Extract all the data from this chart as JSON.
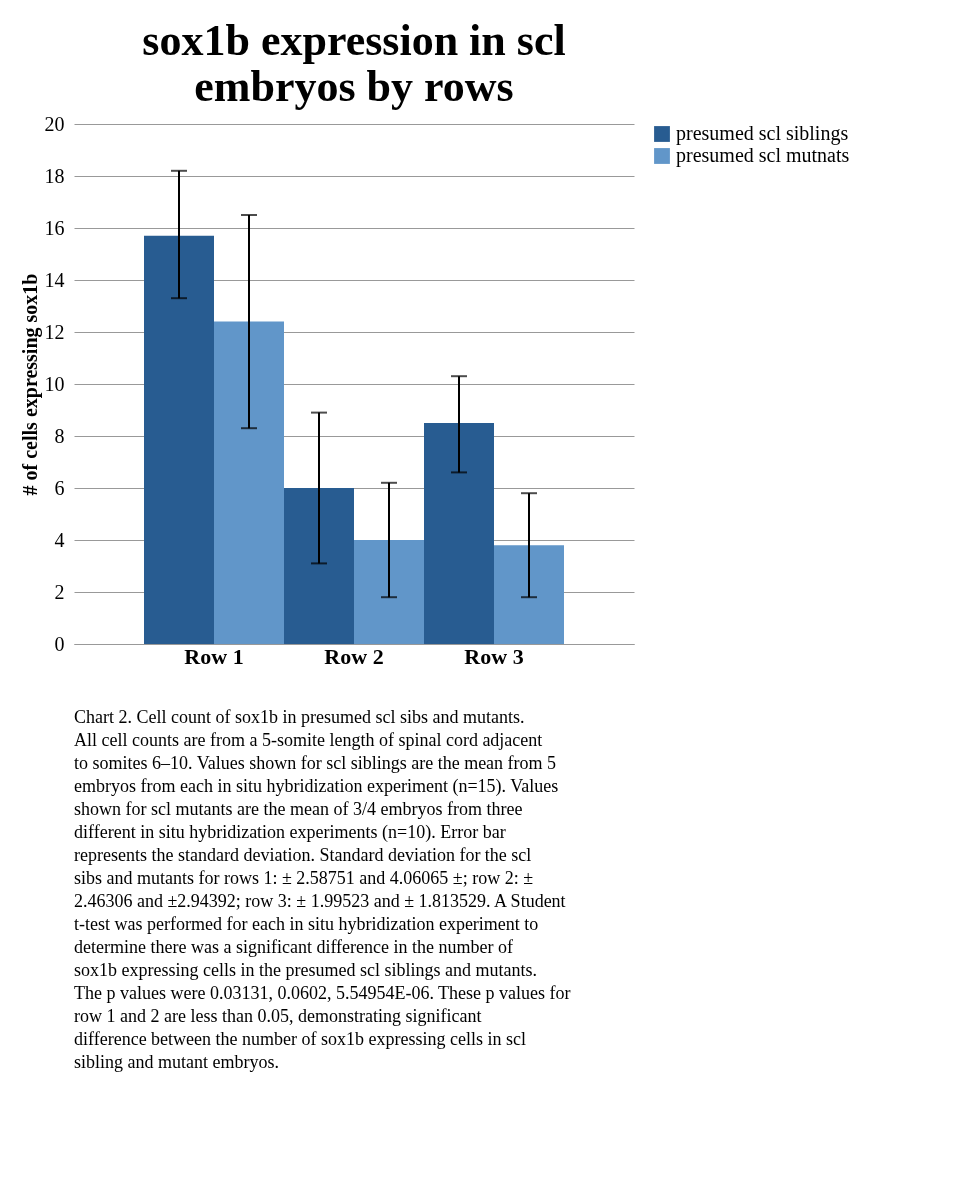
{
  "chart_data": {
    "type": "bar",
    "title": "sox1b expression in scl embryos by rows",
    "ylabel": "# of cells expressing sox1b",
    "categories": [
      "Row 1",
      "Row 2",
      "Row 3"
    ],
    "series": [
      {
        "name": "presumed scl siblings",
        "color": "#285c91",
        "values": [
          15.7,
          6.0,
          8.5
        ],
        "errors": [
          [
            13.3,
            18.2
          ],
          [
            3.1,
            8.9
          ],
          [
            6.6,
            10.3
          ]
        ]
      },
      {
        "name": "presumed scl mutnats",
        "color": "#6196c9",
        "values": [
          12.4,
          4.0,
          3.8
        ],
        "errors": [
          [
            8.3,
            16.5
          ],
          [
            1.8,
            6.2
          ],
          [
            1.8,
            5.8
          ]
        ]
      }
    ],
    "ylim": [
      0,
      20
    ],
    "yticks": [
      0,
      2,
      4,
      6,
      8,
      10,
      12,
      14,
      16,
      18,
      20
    ],
    "grid": "y",
    "legend": "right",
    "annotations": [
      "Chart 2. Cell count of sox1b in presumed scl sibs and mutants.  All cell counts are from a 5-somite length of spinal cord adjacent to somites 6–10. Values shown for scl siblings are the mean from 5 embryos from each in situ hybridization experiment (n=15). Values shown for scl mutants are the mean of 3/4 embryos from three different in situ hybridization experiments (n=10). Error bar represents the standard deviation. Standard deviation for the scl sibs and mutants for rows 1: ± 2.58751 and 4.06065 ±; row 2: ± 2.46306 and ±2.94392; row 3: ± 1.99523 and ± 1.813529. A Student t-test was performed for each in situ hybridization experiment to determine there was a significant difference in the number of sox1b expressing cells in the presumed scl siblings and mutants. The p values were 0.03131, 0.0602, 5.54954E-06. These p values for row 1 and 2 are less than 0.05, demonstrating significant difference between the number of sox1b expressing cells in scl sibling and mutant embryos."
    ]
  }
}
